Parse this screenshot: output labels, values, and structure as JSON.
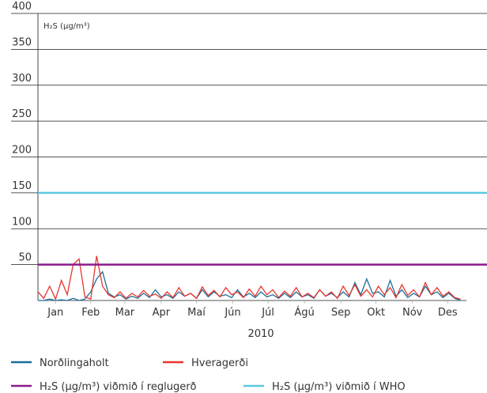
{
  "chart_data": {
    "type": "line",
    "y_axis_label": "H₂S (μg/m³)",
    "x_axis_label": "2010",
    "xlim": [
      0,
      365
    ],
    "xticks": [
      {
        "value": 15,
        "label": "Jan"
      },
      {
        "value": 45,
        "label": "Feb"
      },
      {
        "value": 74,
        "label": "Mar"
      },
      {
        "value": 105,
        "label": "Apr"
      },
      {
        "value": 135,
        "label": "Maí"
      },
      {
        "value": 166,
        "label": "Jún"
      },
      {
        "value": 196,
        "label": "Júl"
      },
      {
        "value": 227,
        "label": "Ágú"
      },
      {
        "value": 258,
        "label": "Sep"
      },
      {
        "value": 288,
        "label": "Okt"
      },
      {
        "value": 319,
        "label": "Nóv"
      },
      {
        "value": 349,
        "label": "Des"
      }
    ],
    "ylim": [
      0,
      400
    ],
    "yticks": [
      50,
      100,
      150,
      200,
      250,
      300,
      350,
      400
    ],
    "grid": true,
    "x": [
      0,
      5,
      10,
      15,
      20,
      25,
      30,
      35,
      40,
      45,
      50,
      55,
      60,
      65,
      70,
      75,
      80,
      85,
      90,
      95,
      100,
      105,
      110,
      115,
      120,
      125,
      130,
      135,
      140,
      145,
      150,
      155,
      160,
      165,
      170,
      175,
      180,
      185,
      190,
      195,
      200,
      205,
      210,
      215,
      220,
      225,
      230,
      235,
      240,
      245,
      250,
      255,
      260,
      265,
      270,
      275,
      280,
      285,
      290,
      295,
      300,
      305,
      310,
      315,
      320,
      325,
      330,
      335,
      340,
      345,
      350,
      355,
      360
    ],
    "series": [
      {
        "name": "Norðlingaholt",
        "color": "#1a6e9a",
        "values": [
          0,
          0,
          2,
          0,
          1,
          0,
          3,
          0,
          2,
          12,
          30,
          40,
          10,
          5,
          8,
          2,
          6,
          3,
          10,
          4,
          15,
          5,
          8,
          3,
          12,
          6,
          10,
          3,
          15,
          5,
          12,
          6,
          8,
          4,
          15,
          5,
          10,
          4,
          12,
          5,
          8,
          3,
          10,
          4,
          12,
          5,
          8,
          3,
          15,
          6,
          10,
          4,
          12,
          5,
          25,
          8,
          30,
          10,
          12,
          5,
          28,
          6,
          15,
          4,
          10,
          5,
          20,
          8,
          12,
          4,
          10,
          3,
          0
        ]
      },
      {
        "name": "Hveragerði",
        "color": "#e8352e",
        "values": [
          12,
          3,
          20,
          2,
          28,
          8,
          50,
          58,
          5,
          2,
          62,
          20,
          8,
          4,
          12,
          3,
          10,
          5,
          14,
          6,
          9,
          3,
          12,
          4,
          18,
          6,
          10,
          3,
          19,
          7,
          14,
          5,
          18,
          8,
          12,
          4,
          16,
          6,
          20,
          8,
          15,
          4,
          13,
          6,
          18,
          5,
          10,
          4,
          15,
          6,
          12,
          3,
          20,
          7,
          22,
          6,
          15,
          5,
          20,
          8,
          18,
          4,
          22,
          7,
          15,
          5,
          25,
          8,
          18,
          6,
          12,
          4,
          2
        ]
      }
    ],
    "reference_lines": [
      {
        "name": "H₂S (μg/m³) viðmið í reglugerð",
        "value": 50,
        "color": "#8b1a89"
      },
      {
        "name": "H₂S (μg/m³) viðmið í WHO",
        "value": 150,
        "color": "#5bc8e0"
      }
    ]
  }
}
